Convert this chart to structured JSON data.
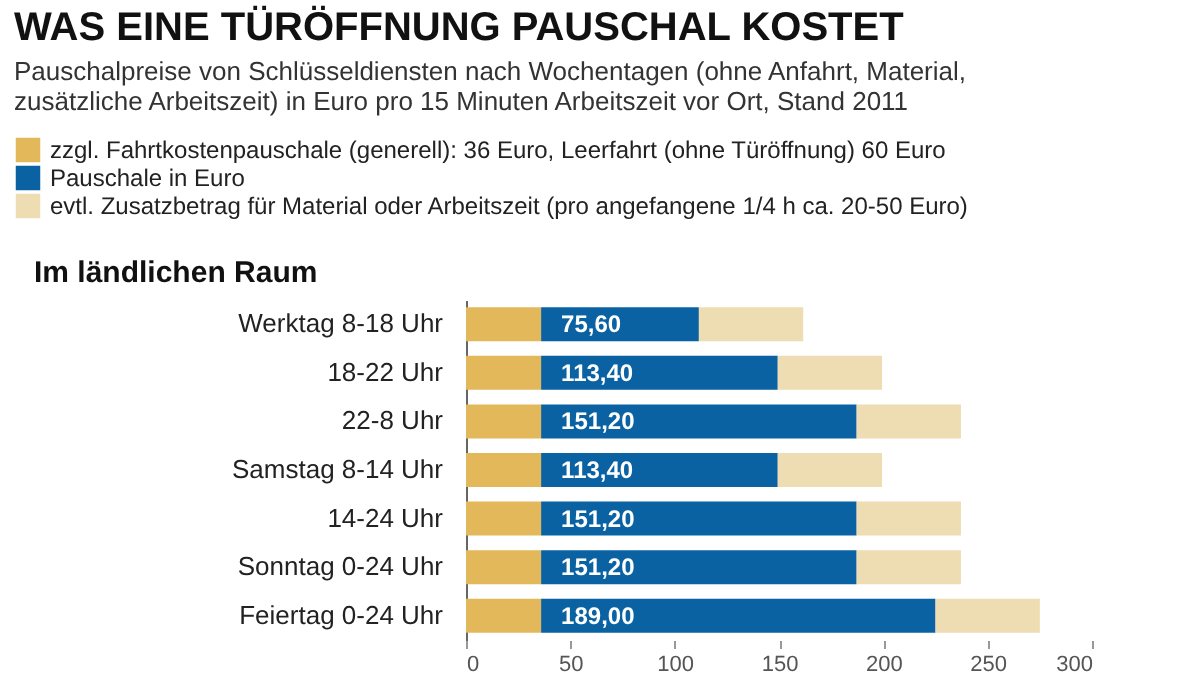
{
  "chart_data": {
    "type": "bar",
    "orientation": "horizontal",
    "stacked": true,
    "title": "WAS EINE TÜRÖFFNUNG PAUSCHAL KOSTET",
    "subtitle": "Pauschalpreise von Schlüsseldiensten nach Wochentagen (ohne Anfahrt, Material, zusätzliche Arbeitszeit) in Euro pro 15 Minuten Arbeitszeit vor Ort, Stand 2011",
    "annotations": [
      "Im ländlichen Raum"
    ],
    "categories": [
      "Werktag 8-18 Uhr",
      "18-22 Uhr",
      "22-8 Uhr",
      "Samstag 8-14 Uhr",
      "14-24 Uhr",
      "Sonntag 0-24 Uhr",
      "Feiertag 0-24 Uhr"
    ],
    "series": [
      {
        "name": "zzgl. Fahrtkostenpauschale (generell): 36 Euro, Leerfahrt (ohne Türöffnung) 60 Euro",
        "color": "#e3b85a",
        "values": [
          36,
          36,
          36,
          36,
          36,
          36,
          36
        ]
      },
      {
        "name": "Pauschale in Euro",
        "color": "#0a62a3",
        "values": [
          75.6,
          113.4,
          151.2,
          113.4,
          151.2,
          151.2,
          189.0
        ],
        "value_labels": [
          "75,60",
          "113,40",
          "151,20",
          "113,40",
          "151,20",
          "151,20",
          "189,00"
        ]
      },
      {
        "name": "evtl. Zusatzbetrag für Material oder Arbeitszeit (pro angefangene 1/4 h ca. 20-50 Euro)",
        "color": "#eedcb2",
        "values": [
          50,
          50,
          50,
          50,
          50,
          50,
          50
        ]
      }
    ],
    "xlim": [
      0,
      300
    ],
    "xticks": [
      0,
      50,
      100,
      150,
      200,
      250,
      300
    ],
    "legend": "top",
    "grid": false
  }
}
